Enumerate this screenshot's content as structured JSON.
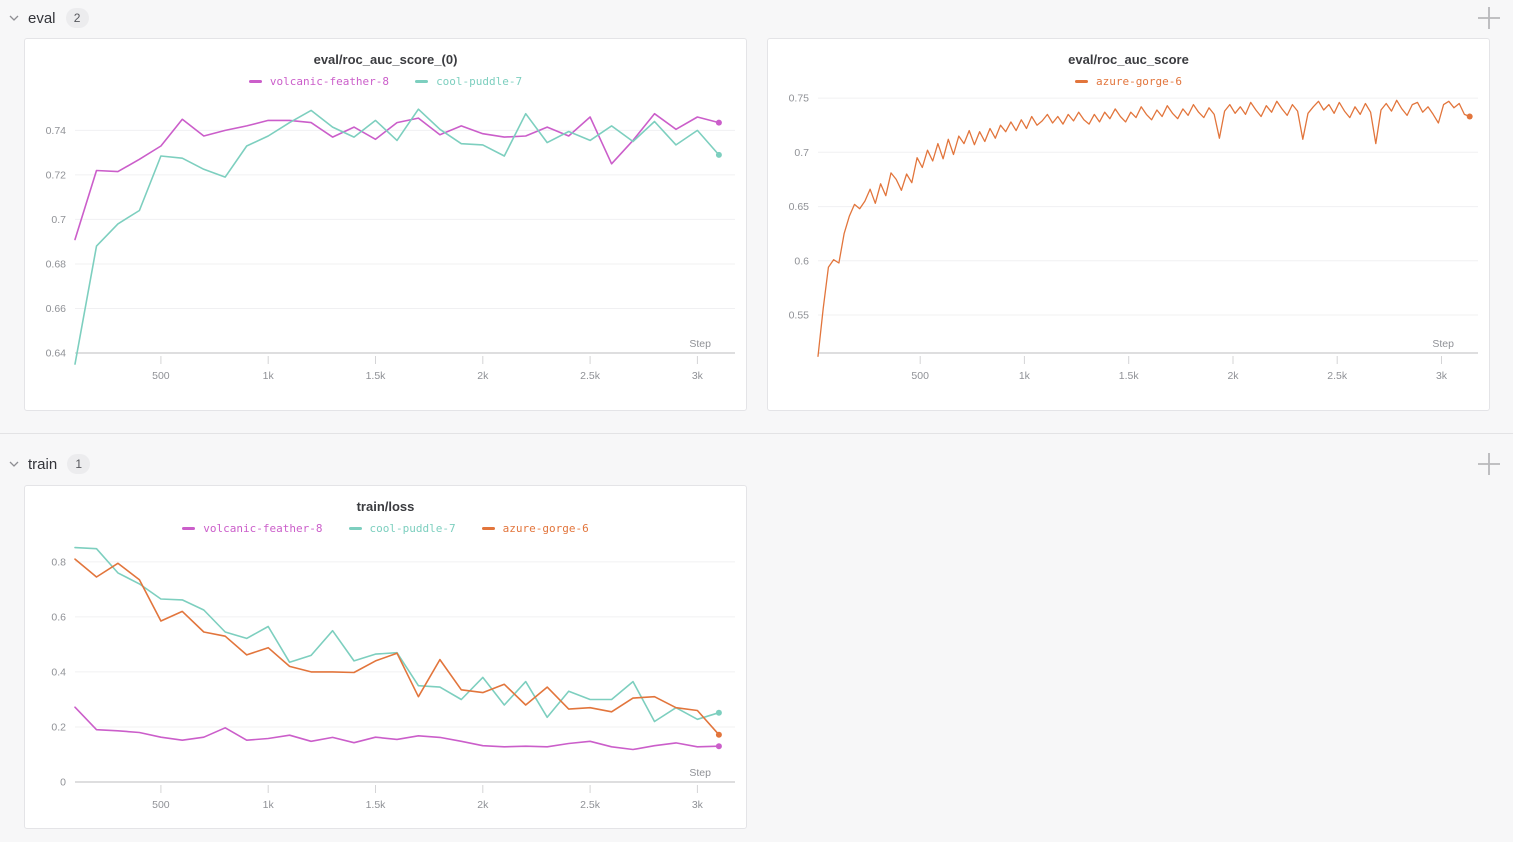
{
  "page": {
    "background_color": "#f7f7f8"
  },
  "icons": {
    "section_collapse": "chevron-down",
    "add_panel": "plus"
  },
  "sections": [
    {
      "label": "eval",
      "count": "2"
    },
    {
      "label": "train",
      "count": "1"
    }
  ],
  "colors": {
    "volcanic-feather-8": "#CB5ECA",
    "cool-puddle-7": "#7DCFBF",
    "azure-gorge-6": "#E2753C"
  },
  "chart_data": [
    {
      "type": "line",
      "title": "eval/roc_auc_score_(0)",
      "xlabel": "Step",
      "grid": "horizontal",
      "legend_position": "top",
      "xlim": [
        100,
        3175
      ],
      "ylim": [
        0.64,
        0.755
      ],
      "x_ticks": [
        {
          "v": 500,
          "label": "500"
        },
        {
          "v": 1000,
          "label": "1k"
        },
        {
          "v": 1500,
          "label": "1.5k"
        },
        {
          "v": 2000,
          "label": "2k"
        },
        {
          "v": 2500,
          "label": "2.5k"
        },
        {
          "v": 3000,
          "label": "3k"
        }
      ],
      "y_ticks": [
        {
          "v": 0.64,
          "label": "0.64"
        },
        {
          "v": 0.66,
          "label": "0.66"
        },
        {
          "v": 0.68,
          "label": "0.68"
        },
        {
          "v": 0.7,
          "label": "0.7"
        },
        {
          "v": 0.72,
          "label": "0.72"
        },
        {
          "v": 0.74,
          "label": "0.74"
        }
      ],
      "series": [
        {
          "name": "volcanic-feather-8",
          "color": "#CB5ECA",
          "x_start": 100,
          "x_interval": 100,
          "values": [
            0.691,
            0.722,
            0.7215,
            0.727,
            0.733,
            0.745,
            0.7375,
            0.74,
            0.742,
            0.7445,
            0.7445,
            0.7435,
            0.737,
            0.7415,
            0.736,
            0.7435,
            0.7455,
            0.738,
            0.742,
            0.7385,
            0.737,
            0.7375,
            0.7415,
            0.7375,
            0.746,
            0.725,
            0.7355,
            0.7475,
            0.7405,
            0.746,
            0.7435
          ]
        },
        {
          "name": "cool-puddle-7",
          "color": "#7DCFBF",
          "x_start": 100,
          "x_interval": 100,
          "values": [
            0.635,
            0.688,
            0.698,
            0.704,
            0.7285,
            0.7275,
            0.7225,
            0.719,
            0.733,
            0.7375,
            0.7435,
            0.749,
            0.7415,
            0.737,
            0.7445,
            0.7355,
            0.7495,
            0.7405,
            0.734,
            0.7335,
            0.7285,
            0.7475,
            0.7345,
            0.7395,
            0.7355,
            0.742,
            0.735,
            0.744,
            0.7335,
            0.74,
            0.729
          ]
        }
      ]
    },
    {
      "type": "line",
      "title": "eval/roc_auc_score",
      "xlabel": "Step",
      "grid": "horizontal",
      "legend_position": "top",
      "xlim": [
        10,
        3175
      ],
      "ylim": [
        0.515,
        0.751
      ],
      "x_ticks": [
        {
          "v": 500,
          "label": "500"
        },
        {
          "v": 1000,
          "label": "1k"
        },
        {
          "v": 1500,
          "label": "1.5k"
        },
        {
          "v": 2000,
          "label": "2k"
        },
        {
          "v": 2500,
          "label": "2.5k"
        },
        {
          "v": 3000,
          "label": "3k"
        }
      ],
      "y_ticks": [
        {
          "v": 0.55,
          "label": "0.55"
        },
        {
          "v": 0.6,
          "label": "0.6"
        },
        {
          "v": 0.65,
          "label": "0.65"
        },
        {
          "v": 0.7,
          "label": "0.7"
        },
        {
          "v": 0.75,
          "label": "0.75"
        }
      ],
      "series": [
        {
          "name": "azure-gorge-6",
          "color": "#E2753C",
          "x_start": 10,
          "x_interval": 25,
          "values": [
            0.512,
            0.556,
            0.594,
            0.601,
            0.598,
            0.625,
            0.641,
            0.652,
            0.648,
            0.655,
            0.666,
            0.653,
            0.671,
            0.66,
            0.681,
            0.675,
            0.665,
            0.68,
            0.672,
            0.695,
            0.686,
            0.702,
            0.692,
            0.708,
            0.694,
            0.712,
            0.698,
            0.715,
            0.708,
            0.72,
            0.707,
            0.719,
            0.71,
            0.722,
            0.713,
            0.725,
            0.719,
            0.728,
            0.72,
            0.73,
            0.722,
            0.733,
            0.725,
            0.729,
            0.735,
            0.727,
            0.733,
            0.726,
            0.735,
            0.729,
            0.737,
            0.73,
            0.726,
            0.735,
            0.728,
            0.737,
            0.731,
            0.74,
            0.733,
            0.728,
            0.737,
            0.732,
            0.742,
            0.735,
            0.73,
            0.739,
            0.733,
            0.743,
            0.736,
            0.731,
            0.74,
            0.734,
            0.744,
            0.737,
            0.732,
            0.741,
            0.735,
            0.713,
            0.738,
            0.744,
            0.736,
            0.742,
            0.735,
            0.746,
            0.739,
            0.733,
            0.743,
            0.737,
            0.747,
            0.74,
            0.734,
            0.744,
            0.738,
            0.712,
            0.736,
            0.742,
            0.747,
            0.739,
            0.744,
            0.736,
            0.746,
            0.738,
            0.732,
            0.742,
            0.735,
            0.745,
            0.737,
            0.708,
            0.739,
            0.745,
            0.738,
            0.748,
            0.74,
            0.734,
            0.744,
            0.746,
            0.737,
            0.742,
            0.735,
            0.727,
            0.744,
            0.747,
            0.741,
            0.745,
            0.735,
            0.733
          ]
        }
      ]
    },
    {
      "type": "line",
      "title": "train/loss",
      "xlabel": "Step",
      "grid": "horizontal",
      "legend_position": "top",
      "xlim": [
        100,
        3175
      ],
      "ylim": [
        0,
        0.865
      ],
      "x_ticks": [
        {
          "v": 500,
          "label": "500"
        },
        {
          "v": 1000,
          "label": "1k"
        },
        {
          "v": 1500,
          "label": "1.5k"
        },
        {
          "v": 2000,
          "label": "2k"
        },
        {
          "v": 2500,
          "label": "2.5k"
        },
        {
          "v": 3000,
          "label": "3k"
        }
      ],
      "y_ticks": [
        {
          "v": 0,
          "label": "0"
        },
        {
          "v": 0.2,
          "label": "0.2"
        },
        {
          "v": 0.4,
          "label": "0.4"
        },
        {
          "v": 0.6,
          "label": "0.6"
        },
        {
          "v": 0.8,
          "label": "0.8"
        }
      ],
      "series": [
        {
          "name": "volcanic-feather-8",
          "color": "#CB5ECA",
          "x_start": 100,
          "x_interval": 100,
          "values": [
            0.272,
            0.19,
            0.186,
            0.18,
            0.163,
            0.152,
            0.163,
            0.197,
            0.152,
            0.158,
            0.17,
            0.148,
            0.162,
            0.143,
            0.163,
            0.155,
            0.168,
            0.162,
            0.148,
            0.132,
            0.128,
            0.13,
            0.128,
            0.14,
            0.148,
            0.128,
            0.118,
            0.132,
            0.142,
            0.128,
            0.13
          ]
        },
        {
          "name": "cool-puddle-7",
          "color": "#7DCFBF",
          "x_start": 100,
          "x_interval": 100,
          "values": [
            0.852,
            0.848,
            0.76,
            0.72,
            0.665,
            0.662,
            0.625,
            0.545,
            0.522,
            0.565,
            0.435,
            0.46,
            0.55,
            0.44,
            0.465,
            0.47,
            0.35,
            0.345,
            0.3,
            0.38,
            0.28,
            0.365,
            0.235,
            0.33,
            0.3,
            0.3,
            0.365,
            0.22,
            0.27,
            0.228,
            0.252
          ]
        },
        {
          "name": "azure-gorge-6",
          "color": "#E2753C",
          "x_start": 100,
          "x_interval": 100,
          "values": [
            0.81,
            0.745,
            0.795,
            0.735,
            0.585,
            0.62,
            0.545,
            0.53,
            0.462,
            0.488,
            0.42,
            0.4,
            0.4,
            0.398,
            0.44,
            0.468,
            0.31,
            0.445,
            0.335,
            0.325,
            0.355,
            0.28,
            0.345,
            0.265,
            0.27,
            0.255,
            0.305,
            0.31,
            0.27,
            0.26,
            0.172
          ]
        }
      ]
    }
  ]
}
